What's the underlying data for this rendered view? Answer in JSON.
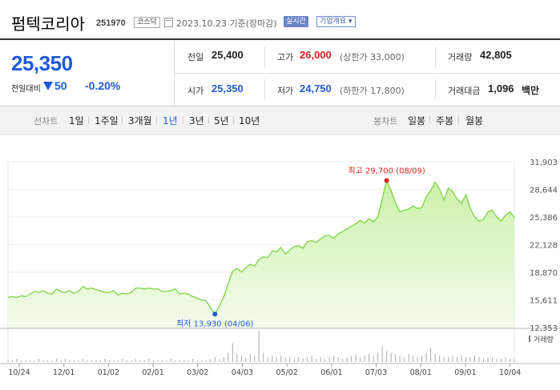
{
  "header": {
    "name": "펌텍코리아",
    "code": "251970",
    "market": "코스닥",
    "date": "2023.10.23 기준(장마감)",
    "realtime": "실시간",
    "overview": "기업개요 ▾"
  },
  "quote": {
    "price": "25,350",
    "change_label": "전일대비",
    "change": "50",
    "change_pct": "-0.20%",
    "prev_close_label": "전일",
    "prev_close": "25,400",
    "high_label": "고가",
    "high": "26,000",
    "upper_limit": "(상한가 33,000)",
    "volume_label": "거래량",
    "volume": "42,805",
    "open_label": "시가",
    "open": "25,350",
    "low_label": "저가",
    "low": "24,750",
    "lower_limit": "(하한가 17,800)",
    "value_label": "거래대금",
    "value": "1,096",
    "value_unit": "백만"
  },
  "toolbar": {
    "line_label": "선차트",
    "periods": [
      "1일",
      "1주일",
      "3개월",
      "1년",
      "3년",
      "5년",
      "10년"
    ],
    "selected_period": "1년",
    "candle_label": "봉차트",
    "candles": [
      "일봉",
      "주봉",
      "월봉"
    ]
  },
  "colors": {
    "up": "#d42020",
    "down": "#1f5bd8",
    "line": "#7bd442",
    "fill_top": "#c8f0a4"
  },
  "chart_data": {
    "type": "area",
    "x_ticks": [
      "10/24",
      "12/01",
      "01/02",
      "02/01",
      "03/02",
      "04/03",
      "05/02",
      "06/01",
      "07/03",
      "08/01",
      "09/01",
      "10/04"
    ],
    "y_ticks": [
      31903,
      28644,
      25386,
      22128,
      18870,
      15611,
      12353
    ],
    "ylim": [
      12353,
      31903
    ],
    "max_label": "최고 29,700 (08/09)",
    "min_label": "최저 13,930 (04/06)",
    "volume_label": "거래량",
    "series": [
      {
        "values": [
          15900,
          16000,
          15900,
          16100,
          16000,
          16300,
          16600,
          16500,
          16700,
          16400,
          16300,
          16900,
          16600,
          16500,
          16700,
          16400,
          16600,
          17200,
          16900,
          17000,
          16800,
          16700,
          16500,
          16500,
          16700,
          16200,
          16400,
          16300,
          16500,
          17000,
          17000,
          16900,
          17000,
          16900,
          16900,
          16600,
          16600,
          16700,
          16900,
          16300,
          16400,
          16300,
          16000,
          15800,
          15600,
          15500,
          14700,
          13930,
          14900,
          16000,
          17500,
          19000,
          19300,
          18900,
          19400,
          19800,
          19600,
          20400,
          20700,
          20600,
          21400,
          21300,
          21800,
          21000,
          21500,
          21900,
          22000,
          21700,
          22500,
          22600,
          22400,
          22800,
          23200,
          23200,
          22900,
          23400,
          23700,
          24000,
          24300,
          24600,
          25000,
          24700,
          25200,
          24800,
          25400,
          27500,
          29700,
          28500,
          27100,
          26000,
          26200,
          26300,
          26700,
          26400,
          26500,
          27800,
          28500,
          29500,
          28700,
          27400,
          28800,
          28400,
          27500,
          27000,
          28000,
          26400,
          25400,
          24900,
          25100,
          26000,
          26200,
          25400,
          24900,
          25600,
          26000,
          25350
        ]
      }
    ],
    "volume": [
      1,
      1,
      2,
      1,
      1,
      1,
      1,
      2,
      1,
      1,
      1,
      2,
      1,
      2,
      1,
      1,
      1,
      2,
      1,
      1,
      1,
      1,
      2,
      1,
      1,
      1,
      2,
      1,
      1,
      2,
      1,
      1,
      2,
      1,
      1,
      1,
      1,
      2,
      1,
      1,
      1,
      1,
      2,
      1,
      1,
      1,
      2,
      3,
      2,
      3,
      6,
      12,
      5,
      4,
      3,
      5,
      4,
      20,
      6,
      3,
      4,
      3,
      4,
      3,
      3,
      2,
      3,
      2,
      3,
      4,
      2,
      3,
      2,
      3,
      4,
      3,
      2,
      3,
      4,
      5,
      3,
      4,
      5,
      4,
      6,
      10,
      7,
      6,
      5,
      4,
      3,
      5,
      4,
      3,
      4,
      6,
      9,
      5,
      4,
      3,
      3,
      4,
      3,
      4,
      3,
      3,
      4,
      3,
      2,
      3,
      3,
      2,
      2,
      3,
      2,
      2
    ]
  }
}
